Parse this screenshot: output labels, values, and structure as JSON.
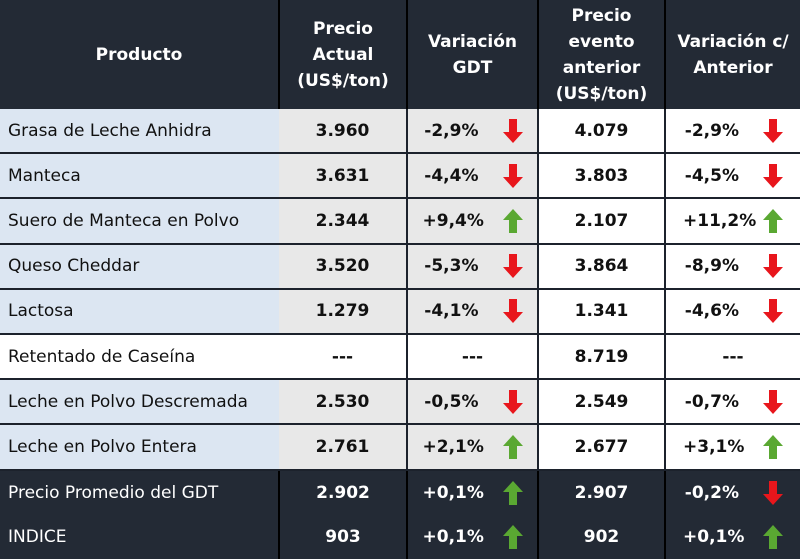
{
  "headers": {
    "product": "Producto",
    "price": [
      "Precio",
      "Actual",
      "(US$/ton)"
    ],
    "var": [
      "Variación",
      "GDT"
    ],
    "prev": [
      "Precio",
      "evento",
      "anterior",
      "(US$/ton)"
    ],
    "varp": [
      "Variación c/",
      "Anterior"
    ]
  },
  "rows": [
    {
      "product": "Grasa de Leche Anhidra",
      "price": "3.960",
      "var": "-2,9%",
      "var_dir": "down",
      "prev": "4.079",
      "varp": "-2,9%",
      "varp_dir": "down"
    },
    {
      "product": "Manteca",
      "price": "3.631",
      "var": "-4,4%",
      "var_dir": "down",
      "prev": "3.803",
      "varp": "-4,5%",
      "varp_dir": "down"
    },
    {
      "product": "Suero de Manteca en Polvo",
      "price": "2.344",
      "var": "+9,4%",
      "var_dir": "up",
      "prev": "2.107",
      "varp": "+11,2%",
      "varp_dir": "up"
    },
    {
      "product": "Queso Cheddar",
      "price": "3.520",
      "var": "-5,3%",
      "var_dir": "down",
      "prev": "3.864",
      "varp": "-8,9%",
      "varp_dir": "down"
    },
    {
      "product": "Lactosa",
      "price": "1.279",
      "var": "-4,1%",
      "var_dir": "down",
      "prev": "1.341",
      "varp": "-4,6%",
      "varp_dir": "down"
    },
    {
      "product": "Retentado de Caseína",
      "price": "---",
      "var": "---",
      "var_dir": "none",
      "prev": "8.719",
      "varp": "---",
      "varp_dir": "none"
    },
    {
      "product": "Leche en Polvo Descremada",
      "price": "2.530",
      "var": "-0,5%",
      "var_dir": "down",
      "prev": "2.549",
      "varp": "-0,7%",
      "varp_dir": "down"
    },
    {
      "product": "Leche en Polvo Entera",
      "price": "2.761",
      "var": "+2,1%",
      "var_dir": "up",
      "prev": "2.677",
      "varp": "+3,1%",
      "varp_dir": "up"
    }
  ],
  "summary": [
    {
      "product": "Precio Promedio del GDT",
      "price": "2.902",
      "var": "+0,1%",
      "var_dir": "up",
      "prev": "2.907",
      "varp": "-0,2%",
      "varp_dir": "down"
    },
    {
      "product": "INDICE",
      "price": "903",
      "var": "+0,1%",
      "var_dir": "up",
      "prev": "902",
      "varp": "+0,1%",
      "varp_dir": "up"
    }
  ],
  "colors": {
    "up": "#5aa832",
    "down": "#e8161c",
    "header_bg": "#232a35",
    "product_bg": "#dce6f2",
    "price_bg": "#e8e8e8"
  }
}
